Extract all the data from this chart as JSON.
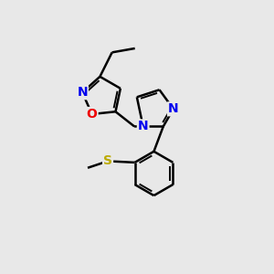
{
  "background_color": "#e8e8e8",
  "bond_color": "#000000",
  "bond_width": 1.8,
  "atom_colors": {
    "N": "#0000ee",
    "O": "#ee0000",
    "S": "#bbaa00",
    "C": "#000000"
  },
  "font_size": 10,
  "fig_size": [
    3.0,
    3.0
  ],
  "dpi": 100
}
